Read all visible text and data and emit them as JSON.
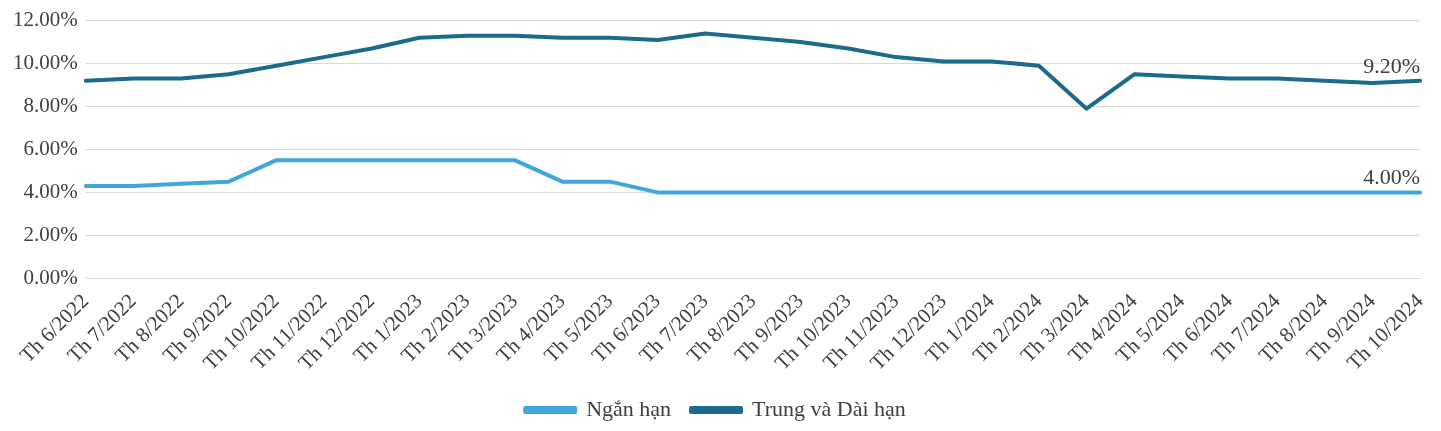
{
  "chart_data": {
    "type": "line",
    "categories": [
      "Th 6/2022",
      "Th 7/2022",
      "Th 8/2022",
      "Th 9/2022",
      "Th 10/2022",
      "Th 11/2022",
      "Th 12/2022",
      "Th 1/2023",
      "Th 2/2023",
      "Th 3/2023",
      "Th 4/2023",
      "Th 5/2023",
      "Th 6/2023",
      "Th 7/2023",
      "Th 8/2023",
      "Th 9/2023",
      "Th 10/2023",
      "Th 11/2023",
      "Th 12/2023",
      "Th 1/2024",
      "Th 2/2024",
      "Th 3/2024",
      "Th 4/2024",
      "Th 5/2024",
      "Th 6/2024",
      "Th 7/2024",
      "Th 8/2024",
      "Th 9/2024",
      "Th 10/2024"
    ],
    "series": [
      {
        "name": "Ngắn hạn",
        "color": "#41a6dc",
        "values": [
          4.3,
          4.3,
          4.4,
          4.5,
          5.5,
          5.5,
          5.5,
          5.5,
          5.5,
          5.5,
          4.5,
          4.5,
          4.0,
          4.0,
          4.0,
          4.0,
          4.0,
          4.0,
          4.0,
          4.0,
          4.0,
          4.0,
          4.0,
          4.0,
          4.0,
          4.0,
          4.0,
          4.0,
          4.0
        ],
        "value_labels": [
          null,
          null,
          null,
          null,
          null,
          null,
          null,
          null,
          null,
          null,
          null,
          null,
          null,
          null,
          null,
          null,
          null,
          null,
          null,
          null,
          null,
          null,
          null,
          null,
          null,
          null,
          null,
          null,
          "4.00%"
        ]
      },
      {
        "name": "Trung và Dài hạn",
        "color": "#1c6a8c",
        "values": [
          9.2,
          9.3,
          9.3,
          9.5,
          9.9,
          10.3,
          10.7,
          11.2,
          11.3,
          11.3,
          11.2,
          11.2,
          11.1,
          11.4,
          11.2,
          11.0,
          10.7,
          10.3,
          10.1,
          10.1,
          9.9,
          7.9,
          9.5,
          9.4,
          9.3,
          9.3,
          9.2,
          9.1,
          9.2
        ],
        "value_labels": [
          null,
          null,
          null,
          null,
          null,
          null,
          null,
          null,
          null,
          null,
          null,
          null,
          null,
          null,
          null,
          null,
          null,
          null,
          null,
          null,
          null,
          null,
          null,
          null,
          null,
          null,
          null,
          null,
          "9.20%"
        ]
      }
    ],
    "ylim": [
      0,
      12
    ],
    "yticks": [
      {
        "value": 0,
        "label": "0.00%"
      },
      {
        "value": 2,
        "label": "2.00%"
      },
      {
        "value": 4,
        "label": "4.00%"
      },
      {
        "value": 6,
        "label": "6.00%"
      },
      {
        "value": 8,
        "label": "8.00%"
      },
      {
        "value": 10,
        "label": "10.00%"
      },
      {
        "value": 12,
        "label": "12.00%"
      }
    ],
    "grid": "y",
    "legend": "bottom",
    "marker": "none",
    "line_style": "solid"
  }
}
